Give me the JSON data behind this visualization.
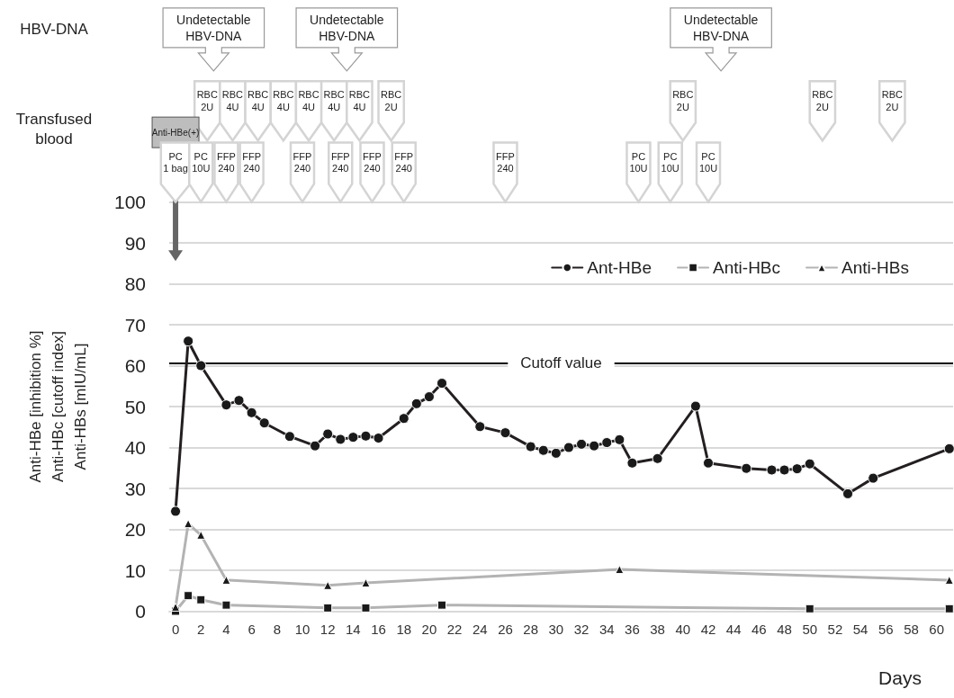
{
  "chart_data": {
    "type": "line",
    "ylabel": "Anti-HBe [inhibition %]\nAnti-HBc [cutoff index]\nAnti-HBs [mIU/mL]",
    "xlabel": "Days",
    "xlim": [
      -0.5,
      61.3
    ],
    "xticks": [
      0,
      2,
      4,
      6,
      8,
      10,
      12,
      14,
      16,
      18,
      20,
      22,
      24,
      26,
      28,
      30,
      32,
      34,
      36,
      38,
      40,
      42,
      44,
      46,
      48,
      50,
      52,
      54,
      56,
      58,
      60
    ],
    "ylim": [
      0,
      100
    ],
    "yticks": [
      0,
      10,
      20,
      30,
      40,
      50,
      60,
      70,
      80,
      90,
      100
    ],
    "grid": "y",
    "legend": "top right",
    "series": [
      {
        "name": "Ant-HBe",
        "color": "#231f20",
        "marker": "circle",
        "x": [
          0,
          1,
          2,
          4,
          5,
          6,
          7,
          9,
          11,
          12,
          13,
          14,
          15,
          16,
          18,
          19,
          20,
          21,
          24,
          26,
          28,
          29,
          30,
          31,
          32,
          33,
          34,
          35,
          36,
          38,
          41,
          42,
          45,
          47,
          48,
          49,
          50,
          53,
          55,
          61
        ],
        "values": [
          24.4,
          66.0,
          60.0,
          50.4,
          51.5,
          48.5,
          46.0,
          42.7,
          40.4,
          43.3,
          42.0,
          42.5,
          42.8,
          42.3,
          47.1,
          50.7,
          52.4,
          55.7,
          45.1,
          43.6,
          40.2,
          39.3,
          38.6,
          40.0,
          40.8,
          40.4,
          41.2,
          41.9,
          36.2,
          37.3,
          50.1,
          36.2,
          34.9,
          34.5,
          34.5,
          34.8,
          36.0,
          28.7,
          32.5,
          39.7
        ]
      },
      {
        "name": "Anti-HBc",
        "color": "#b3b3b3",
        "marker": "square",
        "x": [
          0,
          1,
          2,
          4,
          12,
          15,
          21,
          50,
          61
        ],
        "values": [
          0,
          3.8,
          2.8,
          1.5,
          0.8,
          0.8,
          1.5,
          0.6,
          0.6
        ]
      },
      {
        "name": "Anti-HBs",
        "color": "#b3b3b3",
        "marker": "triangle",
        "x": [
          0,
          1,
          2,
          4,
          12,
          15,
          35,
          61
        ],
        "values": [
          1.0,
          21.4,
          18.6,
          7.6,
          6.3,
          6.9,
          10.2,
          7.6
        ]
      }
    ],
    "ref_lines": [
      {
        "axis": "y",
        "value": 60.7,
        "label": "Cutoff value",
        "color": "#000000"
      }
    ],
    "annotations": [
      "HBV-DNA",
      "Transfused blood",
      "Undetectable\nHBV-DNA",
      "Undetectable\nHBV-DNA",
      "Undetectable\nHBV-DNA",
      "RBC\n2U",
      "RBC\n4U",
      "RBC\n4U",
      "RBC\n4U",
      "RBC\n4U",
      "RBC\n4U",
      "RBC\n4U",
      "RBC\n2U",
      "RBC\n2U",
      "RBC\n2U",
      "RBC\n2U",
      "Anti-HBe(+)",
      "PC\n1 bag",
      "PC\n10U",
      "FFP\n240",
      "FFP\n240",
      "FFP\n240",
      "FFP\n240",
      "FFP\n240",
      "FFP\n240",
      "FFP\n240",
      "PC\n10U",
      "PC\n10U",
      "PC\n10U"
    ]
  }
}
